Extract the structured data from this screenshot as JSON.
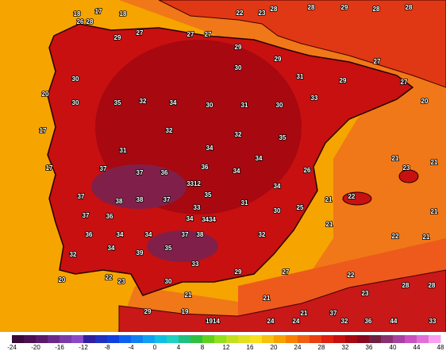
{
  "map": {
    "labels": [
      "18",
      "17",
      "18",
      "26",
      "28",
      "29",
      "27",
      "27",
      "27",
      "22",
      "23",
      "28",
      "28",
      "29",
      "28",
      "28",
      "29",
      "30",
      "29",
      "31",
      "29",
      "27",
      "27",
      "20",
      "30",
      "30",
      "35",
      "32",
      "34",
      "30",
      "31",
      "30",
      "33",
      "35",
      "32",
      "34",
      "32",
      "31",
      "37",
      "37",
      "36",
      "36",
      "34",
      "34",
      "3312",
      "35",
      "37",
      "38",
      "38",
      "37",
      "33",
      "31",
      "30",
      "37",
      "36",
      "34",
      "3434",
      "36",
      "34",
      "34",
      "37",
      "38",
      "32",
      "32",
      "34",
      "39",
      "35",
      "33",
      "29",
      "27",
      "22",
      "22",
      "21",
      "21",
      "23",
      "21",
      "21",
      "21",
      "22",
      "21",
      "26",
      "34",
      "25",
      "17",
      "17",
      "20",
      "20",
      "22",
      "23",
      "30",
      "29",
      "19",
      "1914",
      "24",
      "24",
      "37",
      "32",
      "36",
      "44",
      "33",
      "21",
      "21",
      "28",
      "28",
      "23",
      "21"
    ],
    "colorbar": {
      "ticks": [
        "-24",
        "-20",
        "-16",
        "-12",
        "-8",
        "-4",
        "0",
        "4",
        "8",
        "12",
        "16",
        "20",
        "24",
        "28",
        "32",
        "36",
        "40",
        "44",
        "48"
      ],
      "colors": [
        "#3a0a3a",
        "#4a1050",
        "#5a1a6a",
        "#6a2a8a",
        "#7a3aa8",
        "#8a4ac8",
        "#3020a0",
        "#2030c0",
        "#1040e0",
        "#1060f0",
        "#1080f0",
        "#10a0f0",
        "#10c0e0",
        "#20d0c0",
        "#20c080",
        "#30c040",
        "#60d020",
        "#90e020",
        "#c0e020",
        "#e0e020",
        "#f8e020",
        "#f8c010",
        "#f8a000",
        "#f88000",
        "#f06010",
        "#e84010",
        "#e02010",
        "#c81010",
        "#a80810",
        "#880820",
        "#702040",
        "#883070",
        "#a840a0",
        "#c850c0",
        "#e070d8",
        "#f8a0f0"
      ]
    }
  }
}
